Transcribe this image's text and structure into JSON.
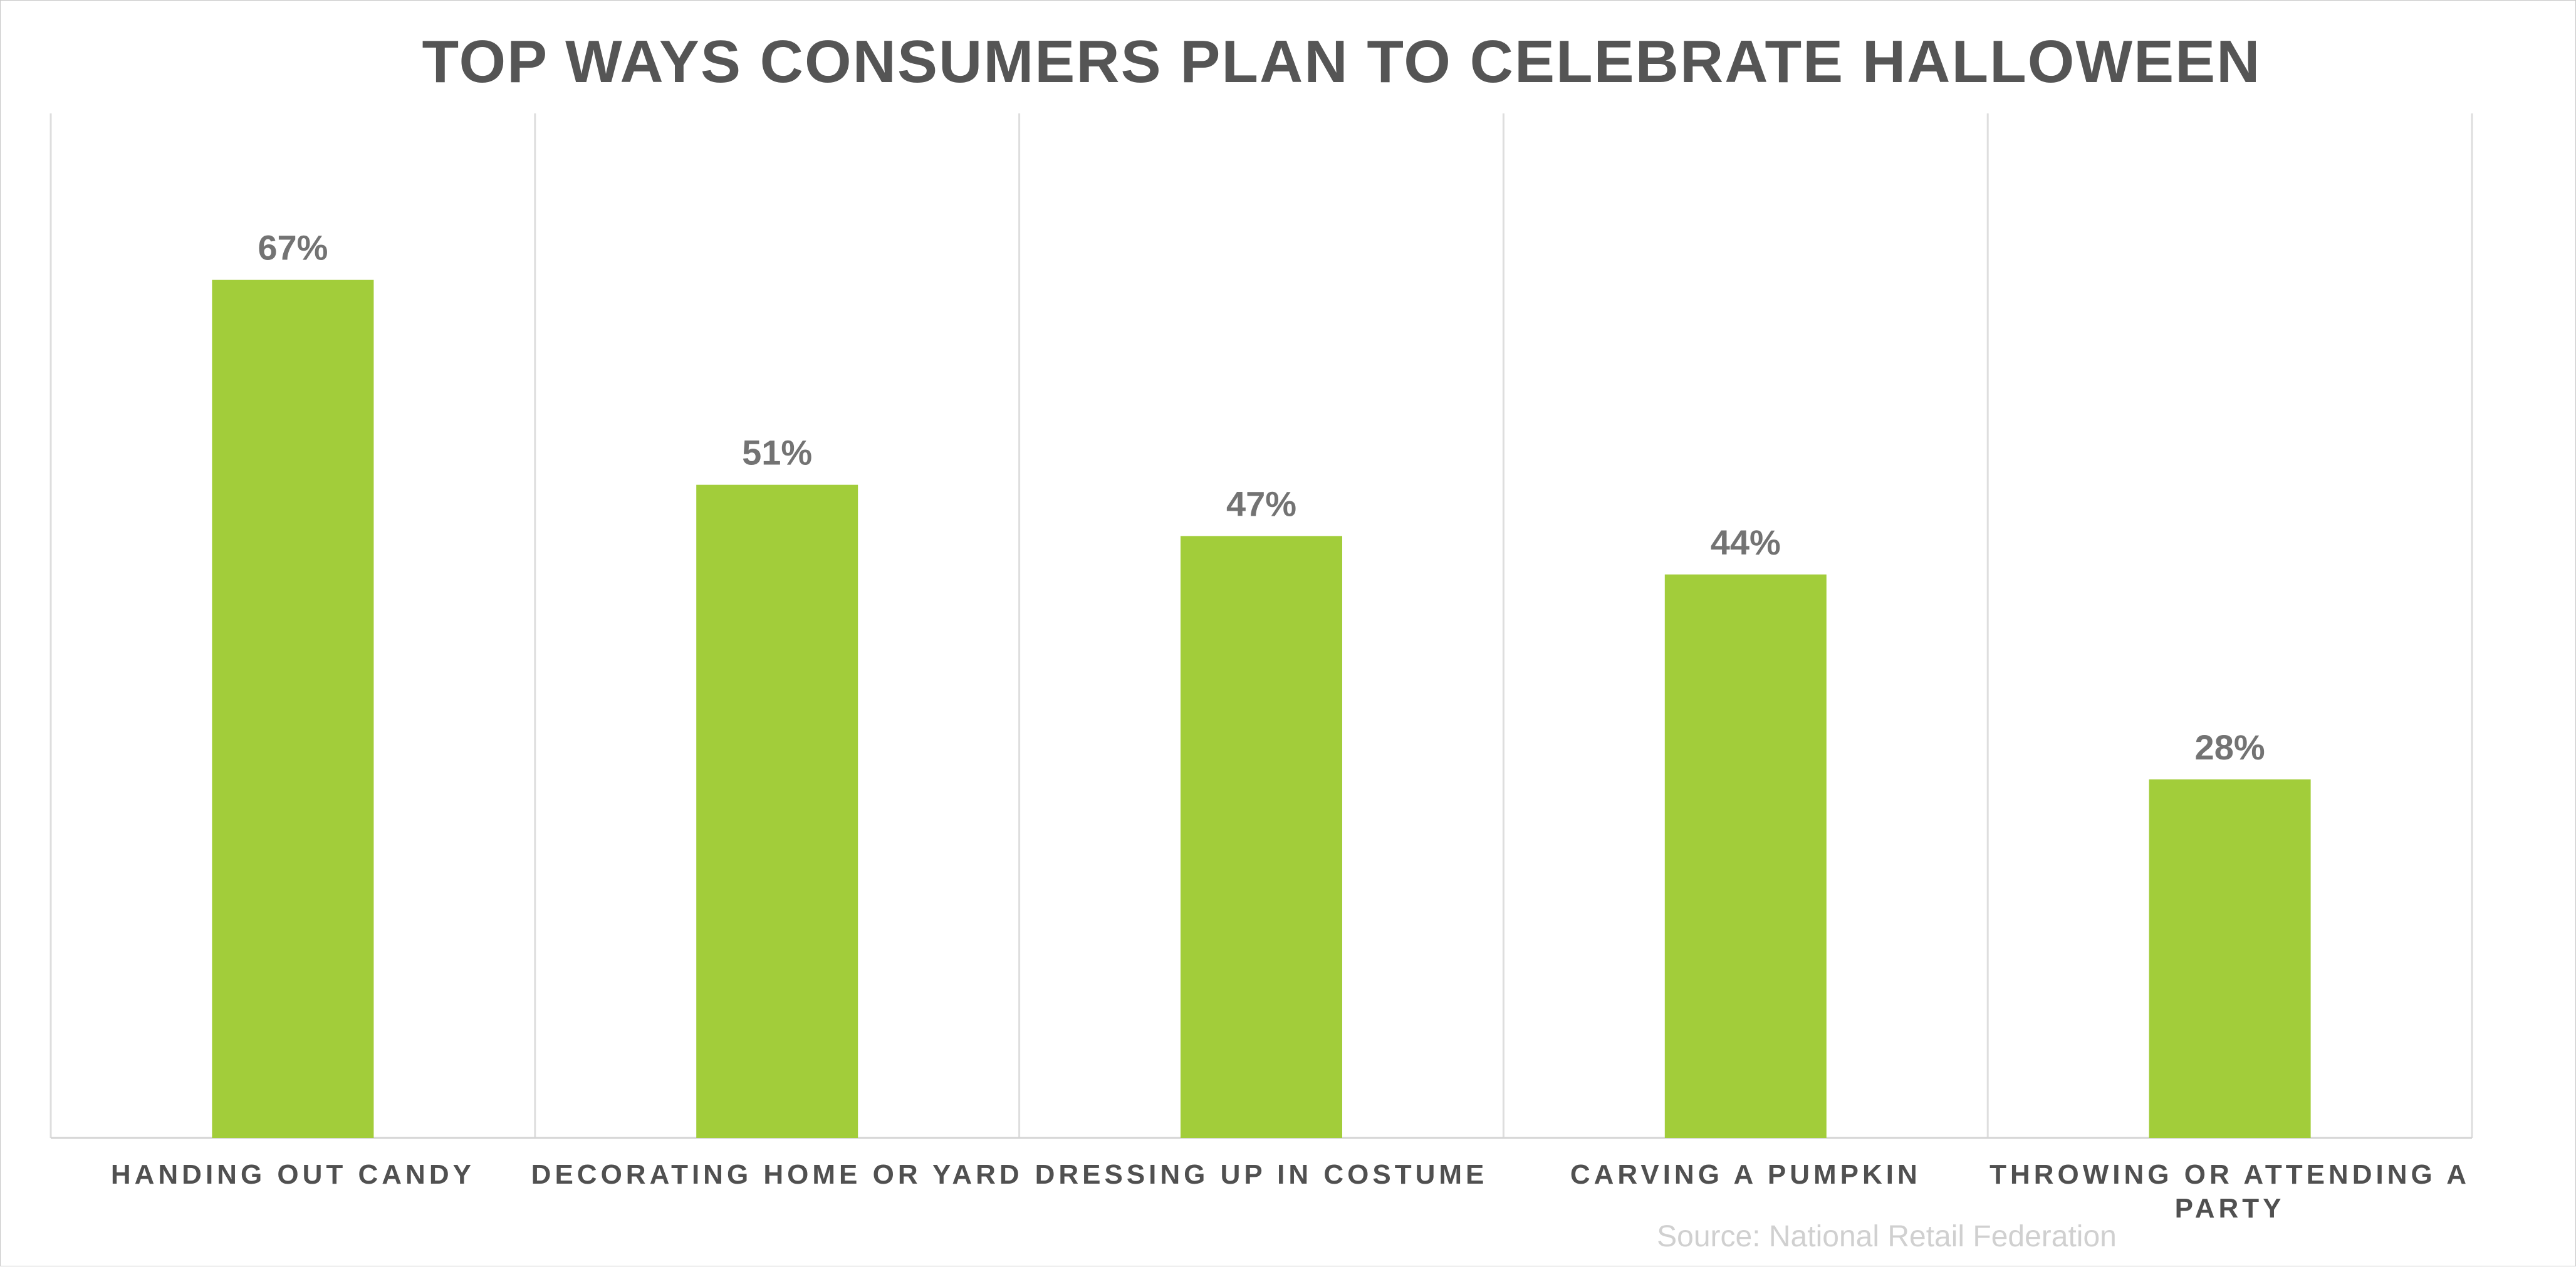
{
  "chart_data": {
    "type": "bar",
    "title": "TOP WAYS CONSUMERS PLAN TO CELEBRATE HALLOWEEN",
    "categories": [
      [
        "HANDING OUT CANDY"
      ],
      [
        "DECORATING HOME OR YARD"
      ],
      [
        "DRESSING UP IN COSTUME"
      ],
      [
        "CARVING A PUMPKIN"
      ],
      [
        "THROWING OR ATTENDING A",
        "PARTY"
      ]
    ],
    "values": [
      67,
      51,
      47,
      44,
      28
    ],
    "value_labels": [
      "67%",
      "51%",
      "47%",
      "44%",
      "28%"
    ],
    "ylim": [
      0,
      80
    ],
    "bar_color": "#a2cd3a",
    "grid": "vertical separators",
    "source": "Source: National Retail Federation"
  }
}
